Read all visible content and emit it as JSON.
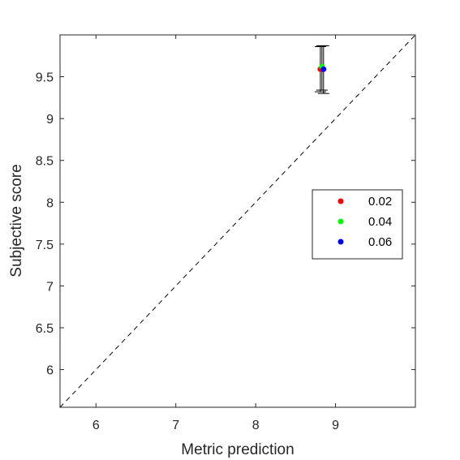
{
  "chart_data": {
    "type": "scatter",
    "title": "",
    "xlabel": "Metric prediction",
    "ylabel": "Subjective score",
    "xlim": [
      5.55,
      10.0
    ],
    "ylim": [
      5.55,
      10.0
    ],
    "xticks": [
      6,
      7,
      8,
      9
    ],
    "xtick_labels": [
      "6",
      "7",
      "8",
      "9"
    ],
    "yticks": [
      6,
      6.5,
      7,
      7.5,
      8,
      8.5,
      9,
      9.5
    ],
    "ytick_labels": [
      "6",
      "6.5",
      "7",
      "7.5",
      "8",
      "8.5",
      "9",
      "9.5"
    ],
    "grid": false,
    "reference_line": "y = x",
    "legend_position": "center-right",
    "series": [
      {
        "name": "0.02",
        "color": "#ff0000",
        "x": 8.81,
        "y": 9.59,
        "err_low": 9.32,
        "err_high": 9.86
      },
      {
        "name": "0.04",
        "color": "#00ff00",
        "x": 8.83,
        "y": 9.62,
        "err_low": 9.34,
        "err_high": 9.87
      },
      {
        "name": "0.06",
        "color": "#0000ff",
        "x": 8.85,
        "y": 9.59,
        "err_low": 9.3,
        "err_high": 9.87
      }
    ]
  }
}
